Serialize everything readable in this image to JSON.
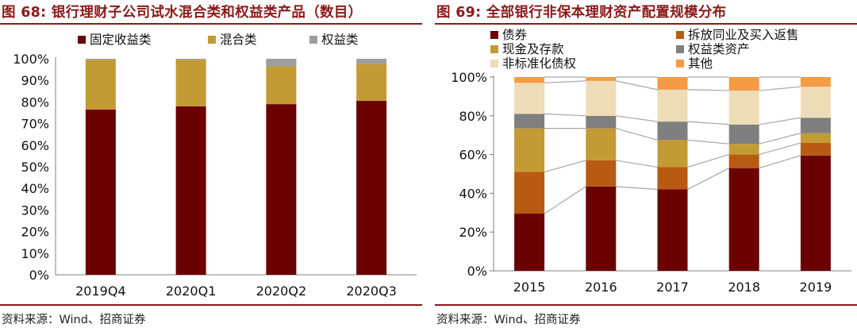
{
  "left": {
    "title": "图 68: 银行理财子公司试水混合类和权益类产品（数目）",
    "source": "资料来源：Wind、招商证券",
    "chart_data": {
      "type": "bar",
      "stacked": true,
      "categories": [
        "2019Q4",
        "2020Q1",
        "2020Q2",
        "2020Q3"
      ],
      "series": [
        {
          "name": "固定收益类",
          "color": "#6b0000",
          "values": [
            76.5,
            78,
            79,
            80.5
          ]
        },
        {
          "name": "混合类",
          "color": "#c39b34",
          "values": [
            23,
            21.5,
            17.5,
            17
          ]
        },
        {
          "name": "权益类",
          "color": "#9e9e9e",
          "values": [
            0.5,
            0.5,
            3.5,
            2.5
          ]
        }
      ],
      "yticks": [
        "0%",
        "10%",
        "20%",
        "30%",
        "40%",
        "50%",
        "60%",
        "70%",
        "80%",
        "90%",
        "100%"
      ],
      "ylim": [
        0,
        100
      ],
      "legend": "top"
    }
  },
  "right": {
    "title": "图 69: 全部银行非保本理财资产配置规模分布",
    "source": "资料来源：Wind、招商证券",
    "chart_data": {
      "type": "bar",
      "stacked": true,
      "categories": [
        "2015",
        "2016",
        "2017",
        "2018",
        "2019"
      ],
      "series": [
        {
          "name": "债券",
          "color": "#6b0000",
          "values": [
            29.5,
            43.5,
            42,
            53,
            59.5
          ]
        },
        {
          "name": "拆放同业及买入返售",
          "color": "#b85a12",
          "values": [
            21.5,
            13.5,
            11.5,
            7,
            6.5
          ]
        },
        {
          "name": "现金及存款",
          "color": "#c39b34",
          "values": [
            22.5,
            16.5,
            14,
            5.5,
            5
          ]
        },
        {
          "name": "权益类资产",
          "color": "#7f7f7f",
          "values": [
            7.5,
            6.5,
            9.5,
            10,
            8
          ]
        },
        {
          "name": "非标准化债权",
          "color": "#eedcb6",
          "values": [
            16,
            18,
            16.5,
            17.5,
            16
          ]
        },
        {
          "name": "其他",
          "color": "#f59a45",
          "values": [
            3,
            2,
            6.5,
            7,
            5
          ]
        }
      ],
      "yticks": [
        "0%",
        "20%",
        "40%",
        "60%",
        "80%",
        "100%"
      ],
      "ylim": [
        0,
        100
      ],
      "legend": "top"
    }
  }
}
